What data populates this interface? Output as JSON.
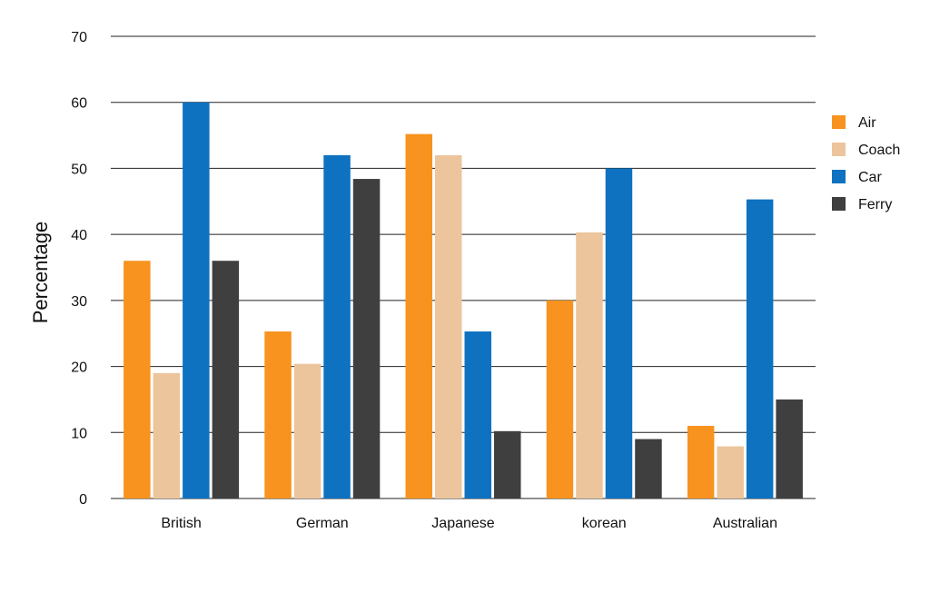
{
  "chart_data": {
    "type": "bar",
    "categories": [
      "British",
      "German",
      "Japanese",
      "korean",
      "Australian"
    ],
    "series": [
      {
        "name": "Air",
        "color": "#f7931e",
        "values": [
          36,
          25.3,
          55.2,
          30,
          11
        ]
      },
      {
        "name": "Coach",
        "color": "#ecc59c",
        "values": [
          19,
          20.4,
          52,
          40.3,
          7.9
        ]
      },
      {
        "name": "Car",
        "color": "#0e72c1",
        "values": [
          60,
          52,
          25.3,
          50,
          45.3
        ]
      },
      {
        "name": "Ferry",
        "color": "#3f3f3f",
        "values": [
          36,
          48.4,
          10.2,
          9,
          15
        ]
      }
    ],
    "ylabel": "Percentage",
    "ylim": [
      0,
      70
    ],
    "yticks": [
      0,
      10,
      20,
      30,
      40,
      50,
      60,
      70
    ],
    "grid": true,
    "legend_position": "right"
  }
}
